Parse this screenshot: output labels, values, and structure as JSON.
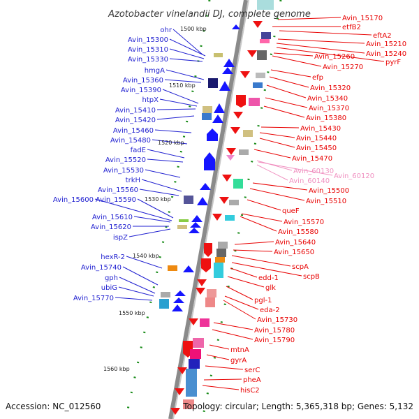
{
  "title": "Azotobacter vinelandii DJ, complete genome",
  "accession": "Accession: NC_012560",
  "topology": "Topology: circular; Length: 5,365,318 bp; Genes: 5,132",
  "colors": {
    "left_label": "#1f1fd0",
    "right_label": "#e80000",
    "rna_label": "#f090c0",
    "backbone": "#8a8a8a",
    "tick_mark": "#1a8c1a"
  },
  "ticks": [
    "1500 kbp",
    "1510 kbp",
    "1520 kbp",
    "1530 kbp",
    "1540 kbp",
    "1550 kbp",
    "1560 kbp"
  ],
  "left_genes": [
    "ohr",
    "Avin_15300",
    "Avin_15310",
    "Avin_15330",
    "hmgA",
    "Avin_15360",
    "Avin_15390",
    "htpX",
    "Avin_15410",
    "Avin_15420",
    "Avin_15460",
    "Avin_15480",
    "fadE",
    "Avin_15520",
    "Avin_15530",
    "trkH",
    "Avin_15560",
    "Avin_15590",
    "Avin_15600",
    "Avin_15610",
    "Avin_15620",
    "ispZ",
    "hexR-2",
    "Avin_15740",
    "gph",
    "ubiG",
    "Avin_15770"
  ],
  "right_genes": [
    "Avin_15170",
    "etfB2",
    "eftA2",
    "Avin_15210",
    "Avin_15240",
    "pyrF",
    "Avin_15260",
    "Avin_15270",
    "efp",
    "Avin_15320",
    "Avin_15340",
    "Avin_15370",
    "Avin_15380",
    "Avin_15430",
    "Avin_15440",
    "Avin_15450",
    "Avin_15470",
    "Avin_15500",
    "Avin_15510",
    "queF",
    "Avin_15570",
    "Avin_15580",
    "Avin_15640",
    "Avin_15650",
    "scpA",
    "scpB",
    "edd-1",
    "glk",
    "pgl-1",
    "eda-2",
    "Avin_15730",
    "Avin_15780",
    "Avin_15790",
    "mtnA",
    "gyrA",
    "serC",
    "pheA",
    "hisC2"
  ],
  "rna_genes": [
    "Avin_60130",
    "Avin_60120",
    "Avin_60140"
  ]
}
